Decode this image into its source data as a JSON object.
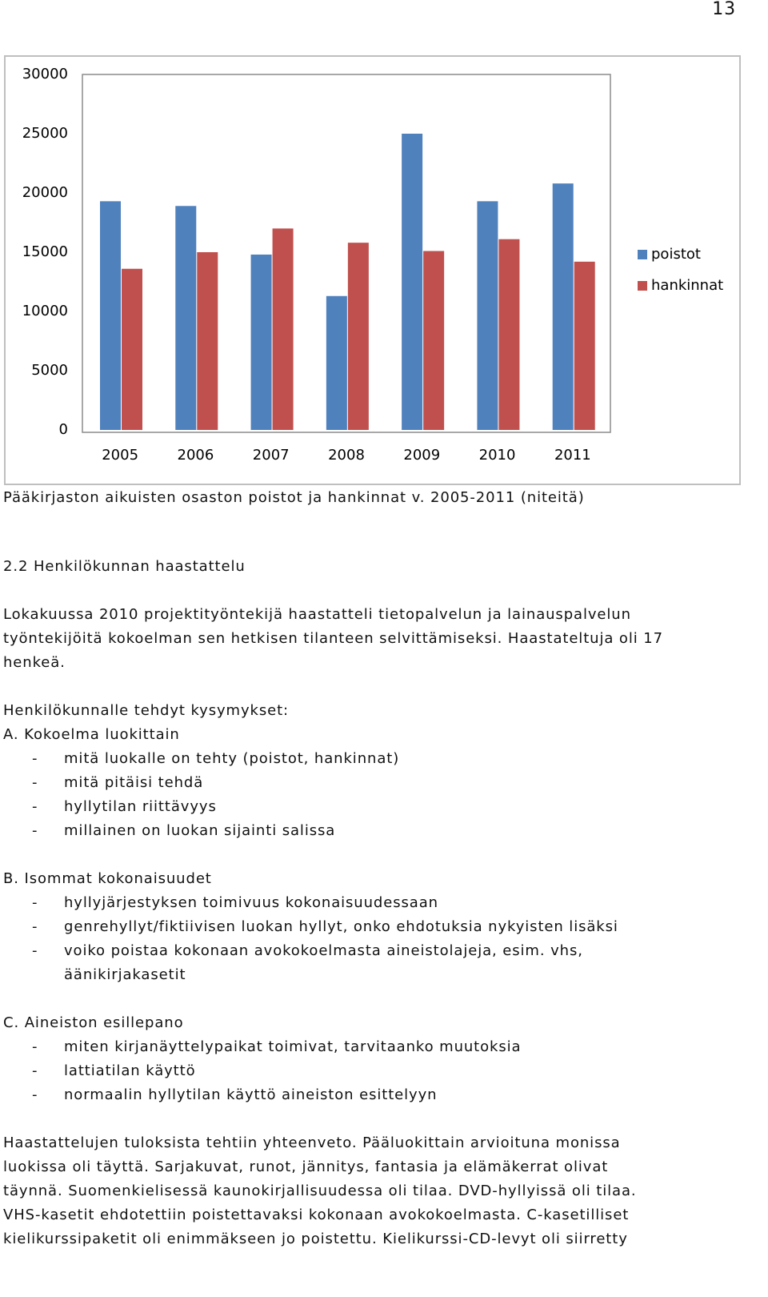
{
  "page_number": "13",
  "chart_data": {
    "type": "bar",
    "categories": [
      "2005",
      "2006",
      "2007",
      "2008",
      "2009",
      "2010",
      "2011"
    ],
    "series": [
      {
        "name": "poistot",
        "color": "#4f81bd",
        "values": [
          19300,
          18900,
          14800,
          11300,
          25000,
          19300,
          20800
        ]
      },
      {
        "name": "hankinnat",
        "color": "#c0504d",
        "values": [
          13600,
          15000,
          17000,
          15800,
          15100,
          16100,
          14200
        ]
      }
    ],
    "ylim": [
      0,
      30000
    ],
    "yticks": [
      0,
      5000,
      10000,
      15000,
      20000,
      25000,
      30000
    ],
    "grid": false,
    "legend": "right"
  },
  "caption": "Pääkirjaston aikuisten osaston poistot ja hankinnat v. 2005-2011 (niteitä)",
  "section": {
    "heading": "2.2 Henkilökunnan haastattelu",
    "intro": [
      "Lokakuussa 2010 projektityöntekijä haastatteli tietopalvelun ja lainauspalvelun",
      "työntekijöitä kokoelman sen hetkisen tilanteen selvittämiseksi. Haastateltuja oli 17",
      "henkeä."
    ],
    "questions_title": "Henkilökunnalle tehdyt kysymykset:",
    "groups": [
      {
        "title": "A. Kokoelma luokittain",
        "items": [
          "mitä luokalle on tehty (poistot, hankinnat)",
          "mitä pitäisi tehdä",
          "hyllytilan riittävyys",
          "millainen on luokan sijainti salissa"
        ]
      },
      {
        "title": "B. Isommat kokonaisuudet",
        "items": [
          "hyllyjärjestyksen toimivuus kokonaisuudessaan",
          "genrehyllyt/fiktiivisen luokan hyllyt, onko ehdotuksia nykyisten lisäksi",
          "voiko poistaa kokonaan avokokoelmasta aineistolajeja, esim. vhs, äänikirjakasetit"
        ]
      },
      {
        "title": "C. Aineiston esillepano",
        "items": [
          "miten kirjanäyttelypaikat toimivat, tarvitaanko muutoksia",
          "lattiatilan käyttö",
          "normaalin hyllytilan käyttö aineiston esittelyyn"
        ]
      }
    ],
    "conclusion": [
      "Haastattelujen tuloksista tehtiin yhteenveto. Pääluokittain arvioituna monissa",
      "luokissa oli täyttä. Sarjakuvat, runot, jännitys, fantasia ja elämäkerrat olivat",
      "täynnä. Suomenkielisessä kaunokirjallisuudessa oli tilaa. DVD-hyllyissä oli tilaa.",
      "VHS-kasetit ehdotettiin poistettavaksi kokonaan avokokoelmasta. C-kasetilliset",
      "kielikurssipaketit oli enimmäkseen jo poistettu. Kielikurssi-CD-levyt oli siirretty"
    ]
  }
}
